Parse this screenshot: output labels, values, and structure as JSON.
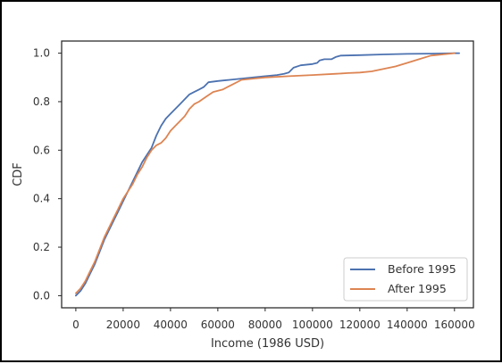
{
  "chart_data": {
    "type": "line",
    "title": "",
    "xlabel": "Income (1986 USD)",
    "ylabel": "CDF",
    "xlim": [
      -6000,
      168000
    ],
    "ylim": [
      -0.05,
      1.05
    ],
    "x_ticks": [
      0,
      20000,
      40000,
      60000,
      80000,
      100000,
      120000,
      140000,
      160000
    ],
    "y_ticks": [
      0.0,
      0.2,
      0.4,
      0.6,
      0.8,
      1.0
    ],
    "grid": false,
    "legend_position": "lower-right",
    "series": [
      {
        "name": "Before 1995",
        "color": "#4c72b0",
        "points": [
          [
            0,
            0.0
          ],
          [
            2000,
            0.02
          ],
          [
            4000,
            0.05
          ],
          [
            6000,
            0.09
          ],
          [
            8000,
            0.13
          ],
          [
            10000,
            0.18
          ],
          [
            12000,
            0.23
          ],
          [
            14000,
            0.27
          ],
          [
            16000,
            0.31
          ],
          [
            18000,
            0.35
          ],
          [
            20000,
            0.39
          ],
          [
            22000,
            0.43
          ],
          [
            24000,
            0.47
          ],
          [
            26000,
            0.51
          ],
          [
            28000,
            0.55
          ],
          [
            30000,
            0.58
          ],
          [
            32000,
            0.61
          ],
          [
            34000,
            0.66
          ],
          [
            36000,
            0.7
          ],
          [
            38000,
            0.73
          ],
          [
            40000,
            0.75
          ],
          [
            42000,
            0.77
          ],
          [
            44000,
            0.79
          ],
          [
            46000,
            0.81
          ],
          [
            48000,
            0.83
          ],
          [
            50000,
            0.84
          ],
          [
            52000,
            0.85
          ],
          [
            54000,
            0.86
          ],
          [
            56000,
            0.88
          ],
          [
            60000,
            0.885
          ],
          [
            65000,
            0.89
          ],
          [
            70000,
            0.895
          ],
          [
            75000,
            0.9
          ],
          [
            80000,
            0.905
          ],
          [
            85000,
            0.91
          ],
          [
            88000,
            0.915
          ],
          [
            90000,
            0.92
          ],
          [
            92000,
            0.94
          ],
          [
            95000,
            0.95
          ],
          [
            100000,
            0.955
          ],
          [
            102000,
            0.96
          ],
          [
            103000,
            0.97
          ],
          [
            105000,
            0.975
          ],
          [
            108000,
            0.975
          ],
          [
            110000,
            0.985
          ],
          [
            112000,
            0.99
          ],
          [
            120000,
            0.992
          ],
          [
            130000,
            0.995
          ],
          [
            140000,
            0.997
          ],
          [
            150000,
            0.998
          ],
          [
            160000,
            1.0
          ],
          [
            162000,
            1.0
          ]
        ]
      },
      {
        "name": "After 1995",
        "color": "#dd8452",
        "points": [
          [
            0,
            0.01
          ],
          [
            2000,
            0.03
          ],
          [
            4000,
            0.06
          ],
          [
            6000,
            0.1
          ],
          [
            8000,
            0.14
          ],
          [
            10000,
            0.19
          ],
          [
            12000,
            0.24
          ],
          [
            14000,
            0.28
          ],
          [
            16000,
            0.32
          ],
          [
            18000,
            0.36
          ],
          [
            20000,
            0.4
          ],
          [
            22000,
            0.43
          ],
          [
            24000,
            0.46
          ],
          [
            26000,
            0.5
          ],
          [
            28000,
            0.53
          ],
          [
            30000,
            0.57
          ],
          [
            32000,
            0.6
          ],
          [
            34000,
            0.62
          ],
          [
            36000,
            0.63
          ],
          [
            38000,
            0.65
          ],
          [
            40000,
            0.68
          ],
          [
            42000,
            0.7
          ],
          [
            44000,
            0.72
          ],
          [
            46000,
            0.74
          ],
          [
            48000,
            0.77
          ],
          [
            50000,
            0.79
          ],
          [
            52000,
            0.8
          ],
          [
            55000,
            0.82
          ],
          [
            58000,
            0.84
          ],
          [
            62000,
            0.85
          ],
          [
            66000,
            0.87
          ],
          [
            70000,
            0.89
          ],
          [
            75000,
            0.895
          ],
          [
            80000,
            0.9
          ],
          [
            90000,
            0.905
          ],
          [
            100000,
            0.91
          ],
          [
            110000,
            0.915
          ],
          [
            115000,
            0.918
          ],
          [
            120000,
            0.92
          ],
          [
            125000,
            0.925
          ],
          [
            130000,
            0.935
          ],
          [
            135000,
            0.945
          ],
          [
            140000,
            0.96
          ],
          [
            145000,
            0.975
          ],
          [
            150000,
            0.99
          ],
          [
            155000,
            0.995
          ],
          [
            160000,
            1.0
          ]
        ]
      }
    ]
  }
}
